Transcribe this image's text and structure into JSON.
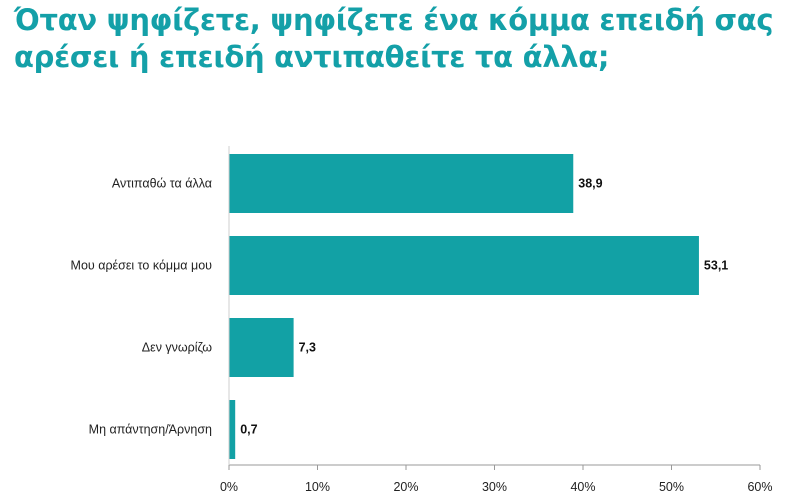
{
  "title_lines": [
    "Όταν ψηφίζετε, ψηφίζετε ένα κόμμα επειδή σας",
    "αρέσει ή επειδή αντιπαθείτε τα άλλα;"
  ],
  "colors": {
    "bar": "#12a1a5",
    "title": "#14a0a8",
    "axis": "#999999"
  },
  "chart_data": {
    "type": "bar",
    "orientation": "horizontal",
    "title": "Όταν ψηφίζετε, ψηφίζετε ένα κόμμα επειδή σας αρέσει ή επειδή αντιπαθείτε τα άλλα;",
    "categories": [
      "Αντιπαθώ τα άλλα",
      "Μου αρέσει το κόμμα μου",
      "Δεν γνωρίζω",
      "Μη απάντηση/Άρνηση"
    ],
    "values": [
      38.9,
      53.1,
      7.3,
      0.7
    ],
    "value_labels": [
      "38,9",
      "53,1",
      "7,3",
      "0,7"
    ],
    "xlim": [
      0,
      60
    ],
    "xticks": [
      0,
      10,
      20,
      30,
      40,
      50,
      60
    ],
    "xtick_labels": [
      "0%",
      "10%",
      "20%",
      "30%",
      "40%",
      "50%",
      "60%"
    ],
    "xlabel": "",
    "ylabel": "",
    "grid": false,
    "legend": "none"
  }
}
